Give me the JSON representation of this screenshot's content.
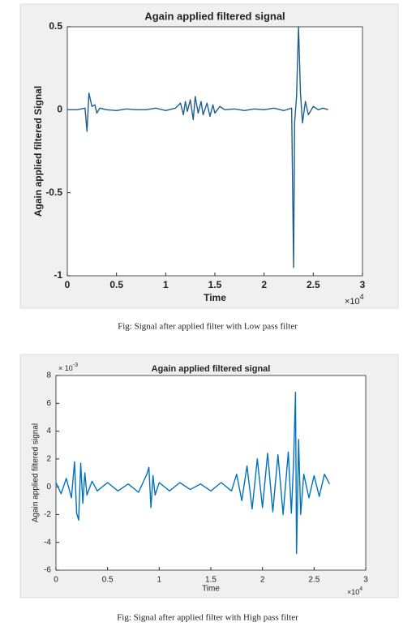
{
  "chart_data": [
    {
      "type": "line",
      "title": "Again applied filtered signal",
      "xlabel": "Time",
      "ylabel": "Again applied filtered Signal",
      "x_multiplier": {
        "base": "×10",
        "exponent": "4"
      },
      "x": [
        0,
        0.1,
        0.18,
        0.2,
        0.22,
        0.25,
        0.28,
        0.3,
        0.33,
        0.4,
        0.5,
        0.6,
        0.7,
        0.8,
        0.9,
        1.0,
        1.1,
        1.15,
        1.18,
        1.2,
        1.22,
        1.25,
        1.28,
        1.3,
        1.33,
        1.36,
        1.38,
        1.42,
        1.45,
        1.48,
        1.5,
        1.55,
        1.6,
        1.7,
        1.8,
        1.9,
        2.0,
        2.1,
        2.2,
        2.28,
        2.3,
        2.31,
        2.33,
        2.35,
        2.37,
        2.39,
        2.42,
        2.45,
        2.5,
        2.55,
        2.6,
        2.65
      ],
      "values": [
        0,
        0,
        0.01,
        -0.13,
        0.1,
        0.02,
        0.03,
        -0.02,
        0.01,
        0,
        -0.005,
        0.005,
        0,
        0,
        0.01,
        -0.005,
        0.01,
        0.04,
        -0.03,
        0.05,
        -0.01,
        0.06,
        -0.06,
        0.08,
        -0.02,
        0.05,
        -0.03,
        0.04,
        -0.04,
        0.03,
        -0.02,
        0.02,
        0,
        0.005,
        -0.005,
        0.005,
        0,
        0.01,
        -0.005,
        0.01,
        -0.95,
        -0.08,
        0.08,
        0.5,
        0.1,
        -0.08,
        0.05,
        -0.03,
        0.02,
        0,
        0.01,
        0
      ],
      "color": "#1d5f8c",
      "xlim": [
        0,
        3
      ],
      "xticks": [
        0,
        0.5,
        1,
        1.5,
        2,
        2.5,
        3
      ],
      "ylim": [
        -1,
        0.5
      ],
      "yticks": [
        -1,
        -0.5,
        0,
        0.5
      ],
      "grid": false,
      "caption": "Fig: Signal after applied filter with Low pass filter"
    },
    {
      "type": "line",
      "title": "Again applied filtered signal",
      "xlabel": "Time",
      "ylabel": "Again applied filtered signal",
      "x_multiplier": {
        "base": "×10",
        "exponent": "4"
      },
      "y_multiplier": {
        "base": "× 10",
        "exponent": "-3"
      },
      "x": [
        0,
        0.05,
        0.1,
        0.15,
        0.18,
        0.2,
        0.22,
        0.24,
        0.26,
        0.28,
        0.3,
        0.35,
        0.4,
        0.5,
        0.6,
        0.7,
        0.8,
        0.88,
        0.9,
        0.92,
        0.94,
        0.96,
        1.0,
        1.1,
        1.2,
        1.3,
        1.4,
        1.5,
        1.6,
        1.7,
        1.75,
        1.8,
        1.85,
        1.9,
        1.95,
        2.0,
        2.05,
        2.1,
        2.15,
        2.2,
        2.25,
        2.28,
        2.3,
        2.32,
        2.33,
        2.35,
        2.37,
        2.4,
        2.45,
        2.5,
        2.55,
        2.6,
        2.65
      ],
      "values": [
        0.3,
        -0.5,
        0.6,
        -0.8,
        1.8,
        -1.9,
        -2.4,
        1.7,
        -1.2,
        1.0,
        -0.6,
        0.4,
        -0.3,
        0.3,
        -0.3,
        0.2,
        -0.4,
        0.9,
        1.4,
        -1.5,
        0.8,
        -0.6,
        0.3,
        -0.3,
        0.3,
        -0.2,
        0.2,
        -0.3,
        0.3,
        -0.3,
        0.9,
        -1.0,
        1.5,
        -1.6,
        2.0,
        -1.5,
        2.4,
        -1.8,
        2.3,
        -2.0,
        2.5,
        -1.9,
        1.5,
        6.8,
        -4.8,
        3.4,
        -2.0,
        0.9,
        -0.8,
        0.8,
        -0.7,
        0.9,
        0.2
      ],
      "color": "#0072bd",
      "xlim": [
        0,
        3
      ],
      "xticks": [
        0,
        0.5,
        1,
        1.5,
        2,
        2.5,
        3
      ],
      "ylim": [
        -6,
        8
      ],
      "yticks": [
        -6,
        -4,
        -2,
        0,
        2,
        4,
        6,
        8
      ],
      "grid": false,
      "caption": "Fig: Signal after applied filter with High pass filter"
    }
  ]
}
